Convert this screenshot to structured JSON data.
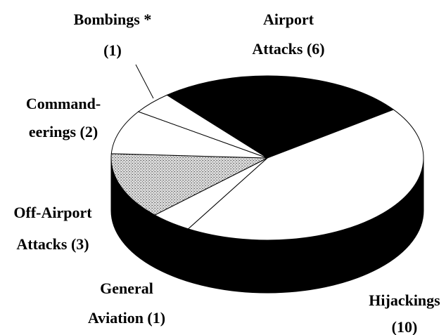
{
  "chart_data": {
    "type": "pie3d",
    "categories": [
      [
        "Airport",
        "Attacks (6)"
      ],
      [
        "Hijackings",
        "(10)"
      ],
      [
        "General",
        "Aviation (1)"
      ],
      [
        "Off-Airport",
        "Attacks (3)"
      ],
      [
        "Command-",
        "eerings (2)"
      ],
      [
        "Bombings *",
        "(1)"
      ]
    ],
    "values": [
      6,
      10,
      1,
      3,
      2,
      1
    ],
    "colors": [
      "#000000",
      "#ffffff",
      "#ffffff",
      "stipple",
      "#ffffff",
      "#ffffff"
    ],
    "side_color": "#000000"
  }
}
